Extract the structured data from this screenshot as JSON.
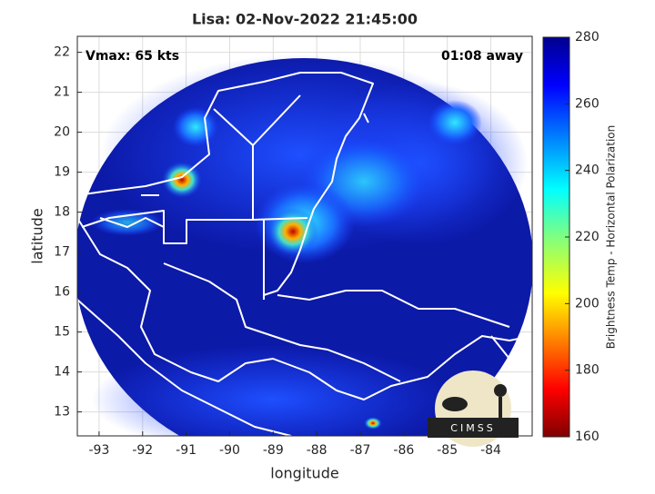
{
  "title": "Lisa: 02-Nov-2022 21:45:00",
  "annotations": {
    "vmax": "Vmax: 65 kts",
    "away": "01:08 away"
  },
  "axes": {
    "xlabel": "longitude",
    "ylabel": "latitude",
    "xlim": [
      -93.5,
      -83.05
    ],
    "ylim": [
      12.4,
      22.4
    ],
    "xticks": [
      -93,
      -92,
      -91,
      -90,
      -89,
      -88,
      -87,
      -86,
      -85,
      -84
    ],
    "yticks": [
      13,
      14,
      15,
      16,
      17,
      18,
      19,
      20,
      21,
      22
    ]
  },
  "colorbar": {
    "label": "Brightness Temp - Horizontal Polarization",
    "clim": [
      160,
      280
    ],
    "ticks": [
      160,
      180,
      200,
      220,
      240,
      260,
      280
    ]
  },
  "logo": "CIMSS"
}
